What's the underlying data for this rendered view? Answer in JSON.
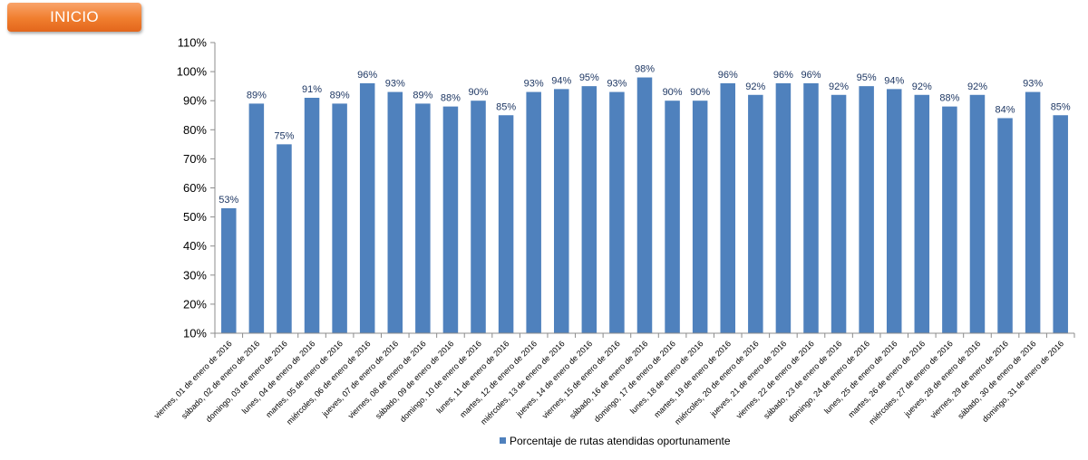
{
  "nav": {
    "inicio_label": "INICIO"
  },
  "colors": {
    "bar": "#4f81bd",
    "button": "#f07e2e",
    "data_label": "#1f3864"
  },
  "chart_data": {
    "type": "bar",
    "title": "",
    "xlabel": "",
    "ylabel": "",
    "ylim": [
      10,
      110
    ],
    "ytick_step": 10,
    "y_unit": "%",
    "grid": false,
    "legend_position": "bottom",
    "categories": [
      "viernes, 01 de enero de 2016",
      "sábado, 02 de enero de 2016",
      "domingo, 03 de enero de 2016",
      "lunes, 04 de enero de 2016",
      "martes, 05 de enero de 2016",
      "miércoles, 06 de enero de 2016",
      "jueves, 07 de enero de 2016",
      "viernes, 08 de enero de 2016",
      "sábado, 09 de enero de 2016",
      "domingo, 10 de enero de 2016",
      "lunes, 11 de enero de 2016",
      "martes, 12 de enero de 2016",
      "miércoles, 13 de enero de 2016",
      "jueves, 14 de enero de 2016",
      "viernes, 15 de enero de 2016",
      "sábado, 16 de enero de 2016",
      "domingo, 17 de enero de 2016",
      "lunes, 18 de enero de 2016",
      "martes, 19 de enero de 2016",
      "miércoles, 20 de enero de 2016",
      "jueves, 21 de enero de 2016",
      "viernes, 22 de enero de 2016",
      "sábado, 23 de enero de 2016",
      "domingo, 24 de enero de 2016",
      "lunes, 25 de enero de 2016",
      "martes, 26 de enero de 2016",
      "miércoles, 27 de enero de 2016",
      "jueves, 28 de enero de 2016",
      "viernes, 29 de enero de 2016",
      "sábado, 30 de enero de 2016",
      "domingo, 31 de enero de 2016"
    ],
    "series": [
      {
        "name": "Porcentaje de rutas atendidas oportunamente",
        "color": "#4f81bd",
        "values": [
          53,
          89,
          75,
          91,
          89,
          96,
          93,
          89,
          88,
          90,
          85,
          93,
          94,
          95,
          93,
          98,
          90,
          90,
          96,
          92,
          96,
          96,
          92,
          95,
          94,
          92,
          88,
          92,
          84,
          93,
          85
        ]
      }
    ]
  }
}
